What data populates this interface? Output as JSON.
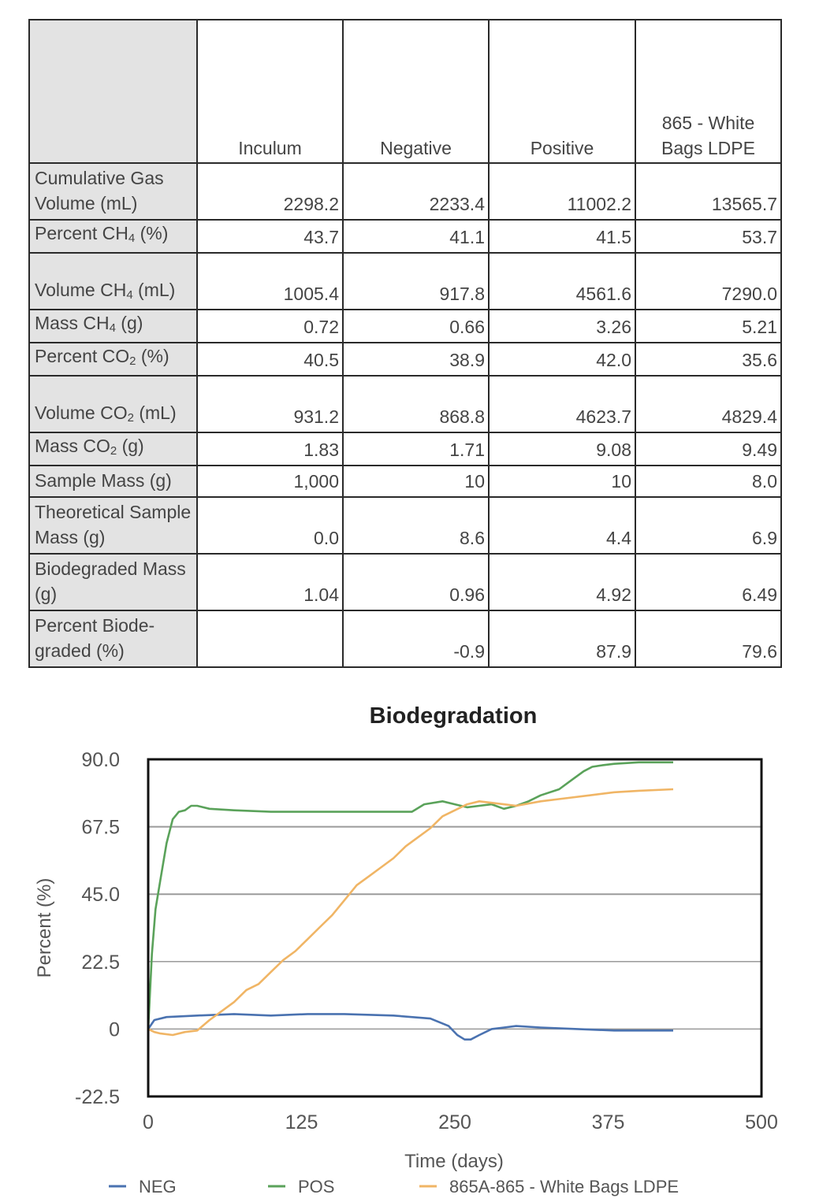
{
  "table": {
    "headers": [
      "",
      "Inculum",
      "Negative",
      "Positive",
      "865 - White Bags LDPE"
    ],
    "rows": [
      {
        "label_parts": [
          "Cumulative Gas Volume (mL)"
        ],
        "values": [
          "2298.2",
          "2233.4",
          "11002.2",
          "13565.7"
        ]
      },
      {
        "label_parts": [
          "Percent CH",
          "4",
          " (%)"
        ],
        "values": [
          "43.7",
          "41.1",
          "41.5",
          "53.7"
        ]
      },
      {
        "label_parts": [
          "Volume CH",
          "4",
          " (mL)"
        ],
        "values": [
          "1005.4",
          "917.8",
          "4561.6",
          "7290.0"
        ]
      },
      {
        "label_parts": [
          "Mass CH",
          "4",
          " (g)"
        ],
        "values": [
          "0.72",
          "0.66",
          "3.26",
          "5.21"
        ]
      },
      {
        "label_parts": [
          "Percent CO",
          "2",
          " (%)"
        ],
        "values": [
          "40.5",
          "38.9",
          "42.0",
          "35.6"
        ]
      },
      {
        "label_parts": [
          "Volume CO",
          "2",
          " (mL)"
        ],
        "values": [
          "931.2",
          "868.8",
          "4623.7",
          "4829.4"
        ]
      },
      {
        "label_parts": [
          "Mass CO",
          "2",
          " (g)"
        ],
        "values": [
          "1.83",
          "1.71",
          "9.08",
          "9.49"
        ]
      },
      {
        "label_parts": [
          "Sample Mass (g)"
        ],
        "values": [
          "1,000",
          "10",
          "10",
          "8.0"
        ]
      },
      {
        "label_parts": [
          "Theoretical Sample Mass (g)"
        ],
        "values": [
          "0.0",
          "8.6",
          "4.4",
          "6.9"
        ]
      },
      {
        "label_parts": [
          "Biodegraded Mass (g)"
        ],
        "values": [
          "1.04",
          "0.96",
          "4.92",
          "6.49"
        ]
      },
      {
        "label_parts": [
          "Percent Biode-graded (%)"
        ],
        "values": [
          "",
          "-0.9",
          "87.9",
          "79.6"
        ]
      }
    ]
  },
  "chart_data": {
    "type": "line",
    "title": "Biodegradation",
    "xlabel": "Time (days)",
    "ylabel": "Percent (%)",
    "xlim": [
      0,
      500
    ],
    "ylim": [
      -22.5,
      90
    ],
    "xticks": [
      "0",
      "125",
      "250",
      "375",
      "500"
    ],
    "yticks": [
      "90.0",
      "67.5",
      "45.0",
      "22.5",
      "0",
      "-22.5"
    ],
    "ytick_values": [
      90,
      67.5,
      45,
      22.5,
      0,
      -22.5
    ],
    "xtick_values": [
      0,
      125,
      250,
      375,
      500
    ],
    "legend_position": "bottom",
    "series": [
      {
        "name": "NEG",
        "color": "#4a72b0",
        "x": [
          0,
          5,
          15,
          40,
          70,
          100,
          130,
          160,
          200,
          230,
          245,
          252,
          258,
          263,
          270,
          280,
          290,
          300,
          320,
          350,
          380,
          410,
          428
        ],
        "y": [
          0,
          3,
          4,
          4.5,
          5,
          4.5,
          5,
          5,
          4.5,
          3.5,
          1,
          -2,
          -3.5,
          -3.5,
          -2,
          0,
          0.5,
          1,
          0.5,
          0,
          -0.5,
          -0.5,
          -0.5
        ]
      },
      {
        "name": "POS",
        "color": "#5aa25a",
        "x": [
          0,
          3,
          6,
          10,
          15,
          20,
          25,
          30,
          35,
          40,
          50,
          70,
          100,
          150,
          200,
          215,
          225,
          240,
          250,
          260,
          270,
          280,
          290,
          300,
          310,
          320,
          335,
          345,
          355,
          362,
          370,
          380,
          400,
          428
        ],
        "y": [
          0,
          25,
          40,
          50,
          62,
          70,
          72.5,
          73,
          74.5,
          74.5,
          73.5,
          73,
          72.5,
          72.5,
          72.5,
          72.5,
          75,
          76,
          75,
          74,
          74.5,
          75,
          73.5,
          74.5,
          76,
          78,
          80,
          83,
          86,
          87.5,
          88,
          88.5,
          89,
          89
        ]
      },
      {
        "name": "865A-865 - White Bags LDPE",
        "color": "#f0b565",
        "x": [
          0,
          5,
          10,
          20,
          30,
          40,
          50,
          60,
          70,
          80,
          90,
          100,
          110,
          120,
          130,
          140,
          150,
          160,
          170,
          180,
          190,
          200,
          210,
          220,
          230,
          240,
          250,
          260,
          270,
          280,
          290,
          300,
          320,
          340,
          360,
          380,
          400,
          428
        ],
        "y": [
          0,
          -1,
          -1.5,
          -2,
          -1,
          -0.5,
          3,
          6,
          9,
          13,
          15,
          19,
          23,
          26,
          30,
          34,
          38,
          43,
          48,
          51,
          54,
          57,
          61,
          64,
          67,
          71,
          73,
          75,
          76,
          75.5,
          75,
          74.5,
          76,
          77,
          78,
          79,
          79.5,
          80
        ]
      }
    ]
  }
}
